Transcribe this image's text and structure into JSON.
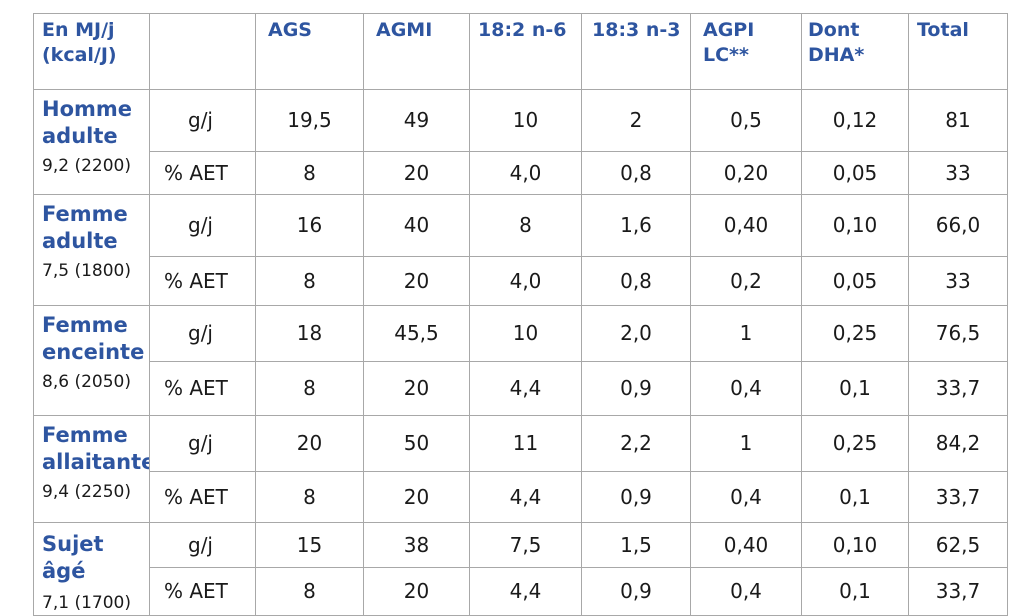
{
  "header": {
    "unit_line1": "En MJ/j",
    "unit_line2": "(kcal/J)",
    "columns": [
      {
        "line1": "AGS",
        "line2": ""
      },
      {
        "line1": "AGMI",
        "line2": ""
      },
      {
        "line1": "18:2 n-6",
        "line2": ""
      },
      {
        "line1": "18:3 n-3",
        "line2": ""
      },
      {
        "line1": "AGPI",
        "line2": "LC**"
      },
      {
        "line1": "Dont",
        "line2": "DHA*"
      },
      {
        "line1": "Total",
        "line2": ""
      }
    ]
  },
  "groups": [
    {
      "name_line1": "Homme",
      "name_line2": "adulte",
      "energy": "9,2 (2200)",
      "rows": [
        {
          "unit": "g/j",
          "values": [
            "19,5",
            "49",
            "10",
            "2",
            "0,5",
            "0,12",
            "81"
          ]
        },
        {
          "unit": "% AET",
          "values": [
            "8",
            "20",
            "4,0",
            "0,8",
            "0,20",
            "0,05",
            "33"
          ]
        }
      ]
    },
    {
      "name_line1": "Femme",
      "name_line2": "adulte",
      "energy": "7,5 (1800)",
      "rows": [
        {
          "unit": "g/j",
          "values": [
            "16",
            "40",
            "8",
            "1,6",
            "0,40",
            "0,10",
            "66,0"
          ]
        },
        {
          "unit": "% AET",
          "values": [
            "8",
            "20",
            "4,0",
            "0,8",
            "0,2",
            "0,05",
            "33"
          ]
        }
      ]
    },
    {
      "name_line1": "Femme",
      "name_line2": "enceinte",
      "energy": "8,6 (2050)",
      "rows": [
        {
          "unit": "g/j",
          "values": [
            "18",
            "45,5",
            "10",
            "2,0",
            "1",
            "0,25",
            "76,5"
          ]
        },
        {
          "unit": "% AET",
          "values": [
            "8",
            "20",
            "4,4",
            "0,9",
            "0,4",
            "0,1",
            "33,7"
          ]
        }
      ]
    },
    {
      "name_line1": "Femme",
      "name_line2": "allaitante",
      "energy": "9,4 (2250)",
      "rows": [
        {
          "unit": "g/j",
          "values": [
            "20",
            "50",
            "11",
            "2,2",
            "1",
            "0,25",
            "84,2"
          ]
        },
        {
          "unit": "% AET",
          "values": [
            "8",
            "20",
            "4,4",
            "0,9",
            "0,4",
            "0,1",
            "33,7"
          ]
        }
      ]
    },
    {
      "name_line1": "Sujet âgé",
      "name_line2": "",
      "energy": "7,1 (1700)",
      "rows": [
        {
          "unit": "g/j",
          "values": [
            "15",
            "38",
            "7,5",
            "1,5",
            "0,40",
            "0,10",
            "62,5"
          ]
        },
        {
          "unit": "% AET",
          "values": [
            "8",
            "20",
            "4,4",
            "0,9",
            "0,4",
            "0,1",
            "33,7"
          ]
        }
      ]
    }
  ]
}
